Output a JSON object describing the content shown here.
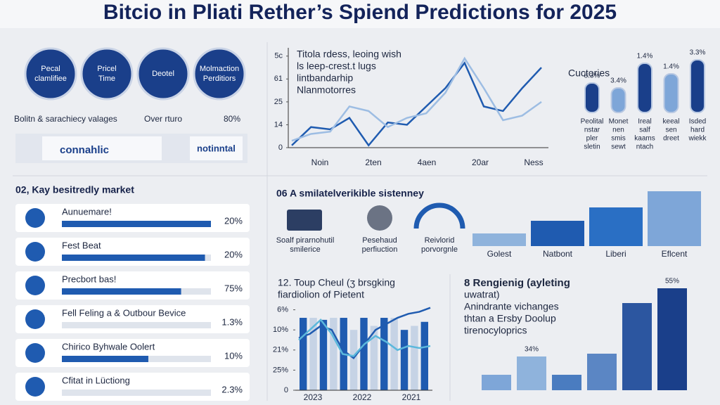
{
  "title": "Bitcio in Pliati Rether’s Spiend Predictions for 2025",
  "circles": [
    {
      "lines": [
        "Pecal",
        "clamlifiee"
      ]
    },
    {
      "lines": [
        "Pricel",
        "Time"
      ]
    },
    {
      "lines": [
        "Deotel"
      ]
    },
    {
      "lines": [
        "Molmaction",
        "Perditiors"
      ]
    }
  ],
  "circle_captions": [
    "Bolitn & sarachiecy valages",
    "Over rturo",
    "80%"
  ],
  "logos": [
    "connahlic",
    "notinntal"
  ],
  "line_chart": {
    "notes": [
      "Titola rdess, leoing wish",
      "ls leep-crest.t lugs",
      "lintbandarhip",
      "Nlanmotorres"
    ],
    "ylim": [
      0,
      4.3
    ],
    "yticks": [
      0,
      {
        "value": 1,
        "label": "14"
      },
      {
        "value": 2,
        "label": "25"
      },
      {
        "value": 3,
        "label": "61"
      },
      {
        "value": 4,
        "label": "5c"
      }
    ],
    "x_labels": [
      "Noin",
      "2ten",
      "4aen",
      "20ar",
      "Ness"
    ],
    "series": [
      {
        "color": "#1f5bb0",
        "values": [
          0.1,
          0.9,
          0.8,
          1.3,
          0.1,
          1.1,
          1.0,
          1.8,
          2.6,
          3.7,
          1.8,
          1.6,
          2.6,
          3.5
        ]
      },
      {
        "color": "#9dbde3",
        "values": [
          0.3,
          0.6,
          0.7,
          1.8,
          1.6,
          0.9,
          1.3,
          1.5,
          2.4,
          3.9,
          2.6,
          1.2,
          1.4,
          2.0
        ]
      }
    ]
  },
  "cuctories": {
    "title": "Cuctories",
    "ylim": [
      0,
      80
    ],
    "values": [
      42,
      35,
      70,
      55,
      75
    ],
    "bar_labels": [
      "8.3%",
      "3.4%",
      "1.4%",
      "1.4%",
      "3.3%"
    ],
    "names": [
      [
        "Peolital",
        "nstar",
        "pler",
        "sletin"
      ],
      [
        "Monet",
        "nen",
        "smis",
        "sewt"
      ],
      [
        "Ireal",
        "salf",
        "kaams",
        "ntach"
      ],
      [
        "keeal",
        "sen",
        "dreet"
      ],
      [
        "Isded",
        "hard",
        "wiekk"
      ]
    ]
  },
  "market": {
    "title": "02, Kay besitredly market",
    "rows": [
      {
        "name": "Aunuemare!",
        "pct": "20%",
        "fill": 100
      },
      {
        "name": "Fest Beat",
        "pct": "20%",
        "fill": 96
      },
      {
        "name": "Precbort bas!",
        "pct": "75%",
        "fill": 80
      },
      {
        "name": "Fell Feling a & Outbour Bevice",
        "pct": "1.3%",
        "fill": 0
      },
      {
        "name": "Chirico Byhwale Oolert",
        "pct": "10%",
        "fill": 58
      },
      {
        "name": "Cfitat in Lüctiong",
        "pct": "2.3%",
        "fill": 0
      }
    ]
  },
  "system": {
    "title": "06 A smilatelverikible sistenney",
    "items": [
      [
        "Soalf pirarnohutil",
        "smilerice"
      ],
      [
        "Pesehaud",
        "perfiuction"
      ],
      [
        "Reivlorid",
        "porvorgnle"
      ]
    ],
    "ylim": [
      0,
      80
    ],
    "values": [
      18,
      36,
      55,
      78
    ],
    "categories": [
      "Golest",
      "Natbont",
      "Liberi",
      "Eflcent"
    ]
  },
  "combo": {
    "title": [
      "12.  Toup Cheul (ʒ brsgking",
      "fiardiolion of Pietent"
    ],
    "ylim": [
      0,
      4.3
    ],
    "yticks": [
      0,
      {
        "value": 1,
        "label": "25%"
      },
      {
        "value": 2,
        "label": "21%"
      },
      {
        "value": 3,
        "label": "10%"
      },
      {
        "value": 4,
        "label": "6%"
      }
    ],
    "x_labels": [
      "2023",
      "2022",
      "2021"
    ],
    "bars": [
      3.6,
      3.6,
      3.5,
      3.6,
      3.6,
      3.0,
      3.6,
      3.2,
      3.6,
      3.6,
      3.0,
      3.2,
      3.4
    ],
    "series": [
      {
        "color": "#1f5bb0",
        "values": [
          2.6,
          2.8,
          3.2,
          3.0,
          2.0,
          1.6,
          2.3,
          3.0,
          3.3,
          3.6,
          3.8,
          3.9,
          4.1
        ]
      },
      {
        "color": "#5bb8dc",
        "values": [
          2.5,
          3.0,
          3.5,
          2.8,
          1.8,
          1.7,
          2.3,
          2.7,
          2.4,
          2.0,
          2.2,
          2.1,
          2.2
        ]
      }
    ]
  },
  "trend": {
    "title": [
      "8 Rengienig (ayleting",
      "uwatrat)",
      "Anindrante vichanges",
      "thtan a Ersby Doolup",
      "tirenocyloprics"
    ],
    "ylim": [
      0,
      160
    ],
    "values": [
      22,
      48,
      22,
      52,
      124,
      145
    ],
    "bar_labels": [
      null,
      "34%",
      null,
      null,
      null,
      "55%"
    ]
  }
}
